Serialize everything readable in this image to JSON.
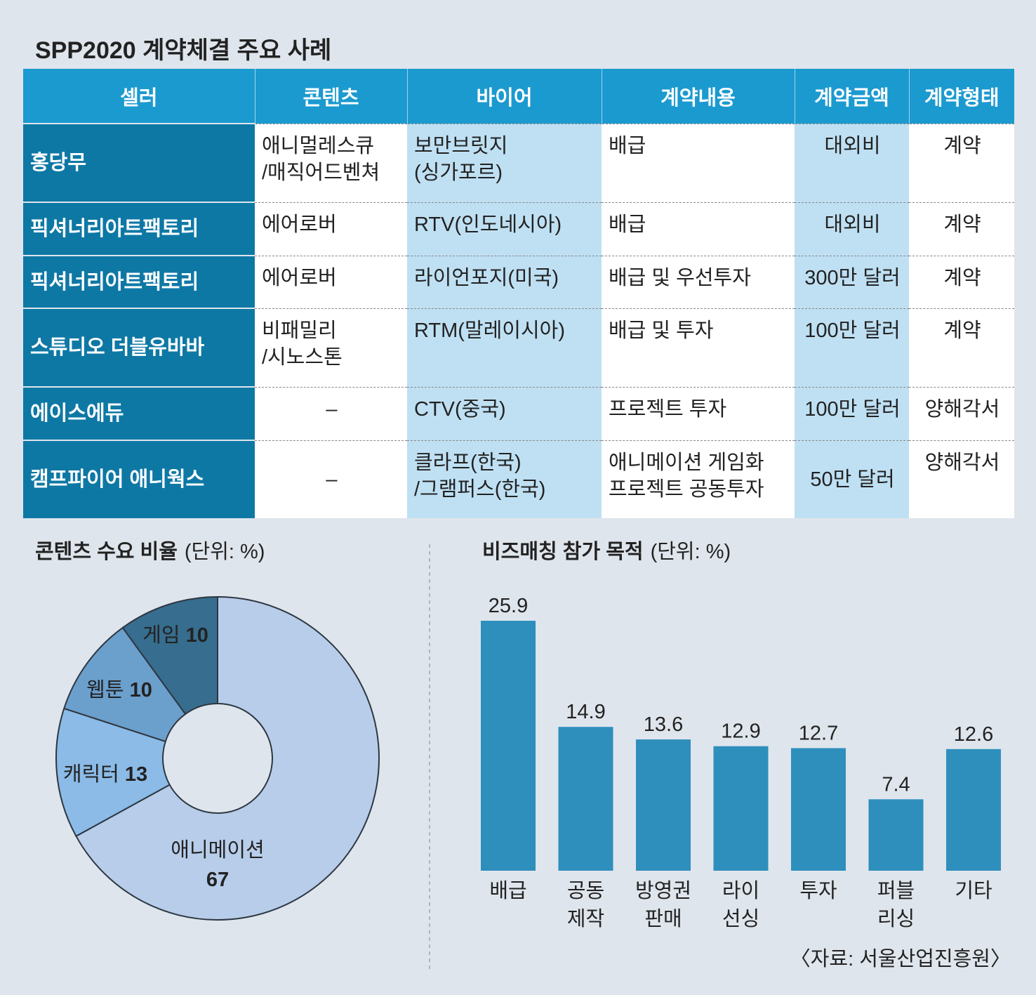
{
  "table": {
    "title": "SPP2020 계약체결 주요 사례",
    "headers": [
      "셀러",
      "콘텐츠",
      "바이어",
      "계약내용",
      "계약금액",
      "계약형태"
    ],
    "rows": [
      [
        "홍당무",
        "애니멀레스큐\n/매직어드벤쳐",
        "보만브릿지\n(싱가포르)",
        "배급",
        "대외비",
        "계약"
      ],
      [
        "픽셔너리아트팩토리",
        "에어로버",
        "RTV(인도네시아)",
        "배급",
        "대외비",
        "계약"
      ],
      [
        "픽셔너리아트팩토리",
        "에어로버",
        "라이언포지(미국)",
        "배급 및 우선투자",
        "300만 달러",
        "계약"
      ],
      [
        "스튜디오 더블유바바",
        "비패밀리\n/시노스톤",
        "RTM(말레이시아)",
        "배급 및 투자",
        "100만 달러",
        "계약"
      ],
      [
        "에이스에듀",
        "–",
        "CTV(중국)",
        "프로젝트 투자",
        "100만 달러",
        "양해각서"
      ],
      [
        "캠프파이어 애니웍스",
        "–",
        "클라프(한국)\n/그램퍼스(한국)",
        "애니메이션 게임화\n프로젝트 공동투자",
        "50만 달러",
        "양해각서"
      ]
    ]
  },
  "chart_data": [
    {
      "type": "donut",
      "title": "콘텐츠 수요 비율",
      "unit": "(단위: %)",
      "categories": [
        "애니메이션",
        "캐릭터",
        "웹툰",
        "게임"
      ],
      "values": [
        67,
        13,
        10,
        10
      ],
      "colors": [
        "#b7cdea",
        "#8bbbe6",
        "#6b9fcc",
        "#376d8e"
      ]
    },
    {
      "type": "bar",
      "title": "비즈매칭 참가 목적",
      "unit": "(단위: %)",
      "categories": [
        "배급",
        "공동\n제작",
        "방영권\n판매",
        "라이\n선싱",
        "투자",
        "퍼블\n리싱",
        "기타"
      ],
      "values": [
        25.9,
        14.9,
        13.6,
        12.9,
        12.7,
        7.4,
        12.6
      ],
      "color": "#2e8fbd"
    }
  ],
  "source": "〈자료: 서울산업진흥원〉"
}
